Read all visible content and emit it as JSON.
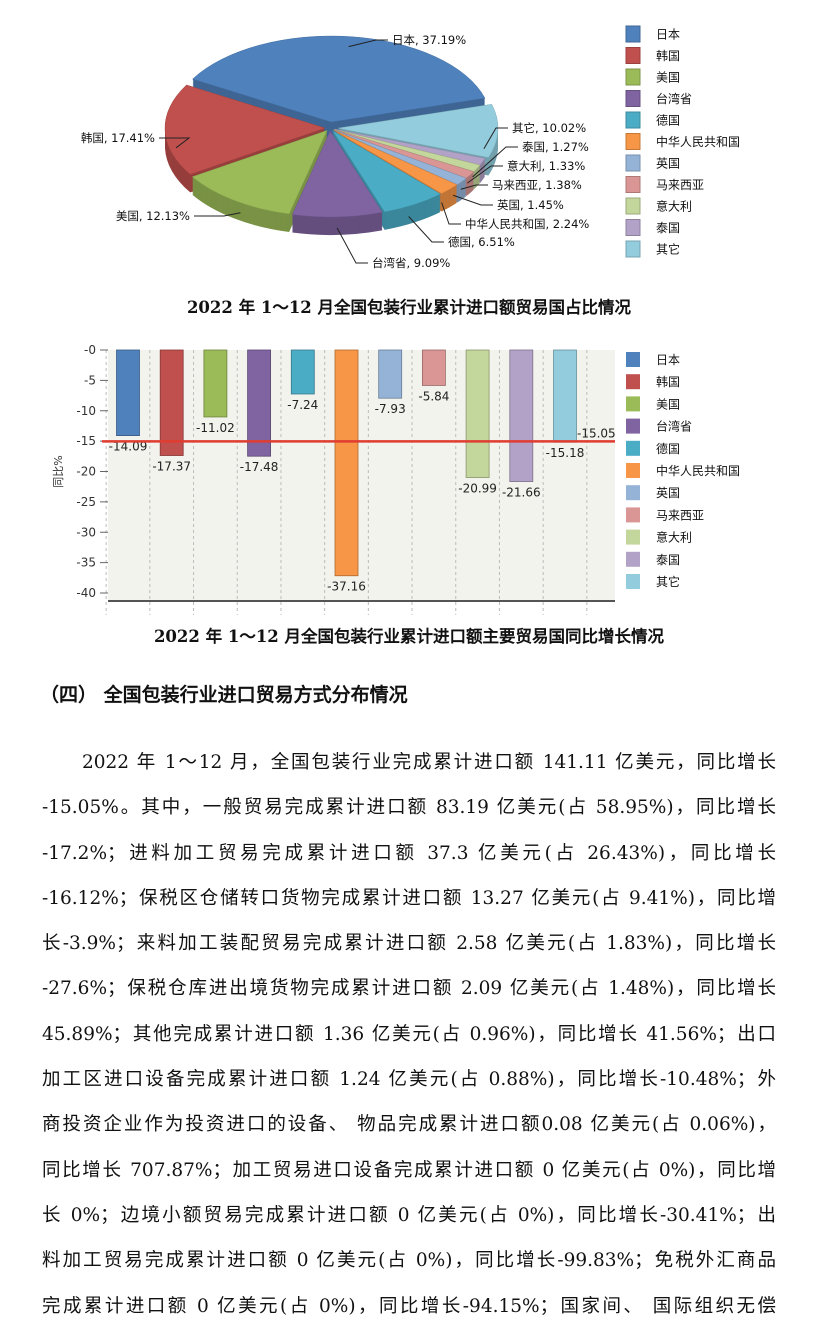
{
  "chart_data": [
    {
      "type": "pie",
      "title": "2022 年 1～12 月全国包装行业累计进口额贸易国占比情况",
      "legend_position": "right",
      "categories": [
        "日本",
        "韩国",
        "美国",
        "台湾省",
        "德国",
        "中华人民共和国",
        "英国",
        "马来西亚",
        "意大利",
        "泰国",
        "其它"
      ],
      "values": [
        37.19,
        17.41,
        12.13,
        9.09,
        6.51,
        2.24,
        1.45,
        1.38,
        1.33,
        1.27,
        10.02
      ],
      "labels": [
        "日本, 37.19%",
        "韩国, 17.41%",
        "美国, 12.13%",
        "台湾省, 9.09%",
        "德国, 6.51%",
        "中华人民共和国, 2.24%",
        "英国, 1.45%",
        "马来西亚, 1.38%",
        "意大利, 1.33%",
        "泰国, 1.27%",
        "其它, 10.02%"
      ],
      "colors": [
        "#4f81bd",
        "#c0504d",
        "#9bbb59",
        "#8064a2",
        "#4bacc6",
        "#f79646",
        "#95b3d7",
        "#d99694",
        "#c3d69b",
        "#b3a2c7",
        "#93cddd"
      ]
    },
    {
      "type": "bar",
      "title": "2022 年 1～12 月全国包装行业累计进口额主要贸易国同比增长情况",
      "ylabel": "同比%",
      "ylim": [
        -40,
        0
      ],
      "yticks": [
        "-0",
        "-5",
        "-10",
        "-15",
        "-20",
        "-25",
        "-30",
        "-35",
        "-40"
      ],
      "grid": "vertical dashed",
      "legend_position": "right",
      "categories": [
        "日本",
        "韩国",
        "美国",
        "台湾省",
        "德国",
        "中华人民共和国",
        "英国",
        "马来西亚",
        "意大利",
        "泰国",
        "其它"
      ],
      "values": [
        -14.09,
        -17.37,
        -11.02,
        -17.48,
        -7.24,
        -37.16,
        -7.93,
        -5.84,
        -20.99,
        -21.66,
        -15.18
      ],
      "value_labels": [
        "-14.09",
        "-17.37",
        "-11.02",
        "-17.48",
        "-7.24",
        "-37.16",
        "-7.93",
        "-5.84",
        "-20.99",
        "-21.66",
        "-15.18"
      ],
      "reference_line": {
        "value": -15.05,
        "label": "-15.05",
        "color": "#e03c31"
      },
      "colors": [
        "#4f81bd",
        "#c0504d",
        "#9bbb59",
        "#8064a2",
        "#4bacc6",
        "#f79646",
        "#95b3d7",
        "#d99694",
        "#c3d69b",
        "#b3a2c7",
        "#93cddd"
      ]
    }
  ],
  "section": {
    "heading": "（四）  全国包装行业进口贸易方式分布情况",
    "lines": [
      "2022 年 1～12 月，全国包装行业完成累计进口额 141.11 亿美元，同比增长",
      "-15.05%。其中，一般贸易完成累计进口额 83.19 亿美元(占 58.95%)，同比增长",
      "-17.2%；进料加工贸易完成累计进口额  37.3  亿美元(占  26.43%)，同比增长",
      "-16.12%；保税区仓储转口货物完成累计进口额 13.27 亿美元(占 9.41%)，同比增",
      "长-3.9%；来料加工装配贸易完成累计进口额 2.58 亿美元(占 1.83%)，同比增长",
      "-27.6%；保税仓库进出境货物完成累计进口额 2.09 亿美元(占 1.48%)，同比增长",
      "45.89%；其他完成累计进口额 1.36 亿美元(占 0.96%)，同比增长 41.56%；出口",
      "加工区进口设备完成累计进口额 1.24 亿美元(占 0.88%)，同比增长-10.48%；外",
      "商投资企业作为投资进口的设备、 物品完成累计进口额0.08 亿美元(占 0.06%)，",
      "同比增长 707.87%；加工贸易进口设备完成累计进口额 0 亿美元(占 0%)，同比增",
      "长 0%；边境小额贸易完成累计进口额 0 亿美元(占 0%)，同比增长-30.41%；出",
      "料加工贸易完成累计进口额 0 亿美元(占 0%)，同比增长-99.83%；免税外汇商品",
      "完成累计进口额 0 亿美元(占 0%)，同比增长-94.15%；国家间、 国际组织无偿"
    ]
  }
}
